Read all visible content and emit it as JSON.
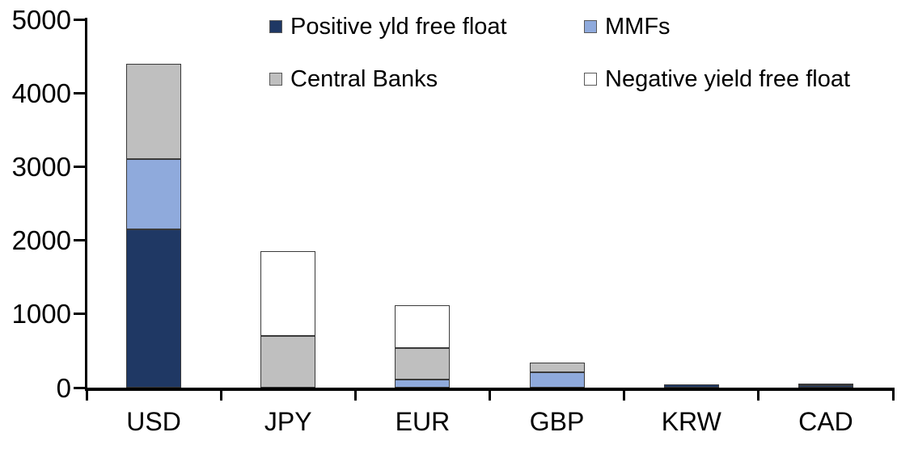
{
  "chart_data": {
    "type": "bar",
    "stacked": true,
    "categories": [
      "USD",
      "JPY",
      "EUR",
      "GBP",
      "KRW",
      "CAD"
    ],
    "series": [
      {
        "name": "Positive yld free float",
        "color": "#1F3864",
        "values": [
          2150,
          0,
          0,
          0,
          45,
          30
        ]
      },
      {
        "name": "MMFs",
        "color": "#8FAADC",
        "values": [
          950,
          0,
          110,
          210,
          0,
          0
        ]
      },
      {
        "name": "Central Banks",
        "color": "#BFBFBF",
        "values": [
          1300,
          700,
          430,
          130,
          0,
          25
        ]
      },
      {
        "name": "Negative yield free float",
        "color": "#FFFFFF",
        "values": [
          0,
          1150,
          580,
          0,
          0,
          0
        ]
      }
    ],
    "totals": [
      4400,
      1850,
      1120,
      340,
      45,
      55
    ],
    "xlabel": "",
    "ylabel": "",
    "title": "",
    "ylim": [
      0,
      5000
    ],
    "yticks": [
      0,
      1000,
      2000,
      3000,
      4000,
      5000
    ],
    "grid": false,
    "legend_position": "top-center",
    "style": {
      "axis_color": "#000000",
      "text_color": "#000000",
      "segment_border_color": "#3A3A3A",
      "swatch_border_color": "#595959",
      "background": "#FFFFFF"
    }
  }
}
